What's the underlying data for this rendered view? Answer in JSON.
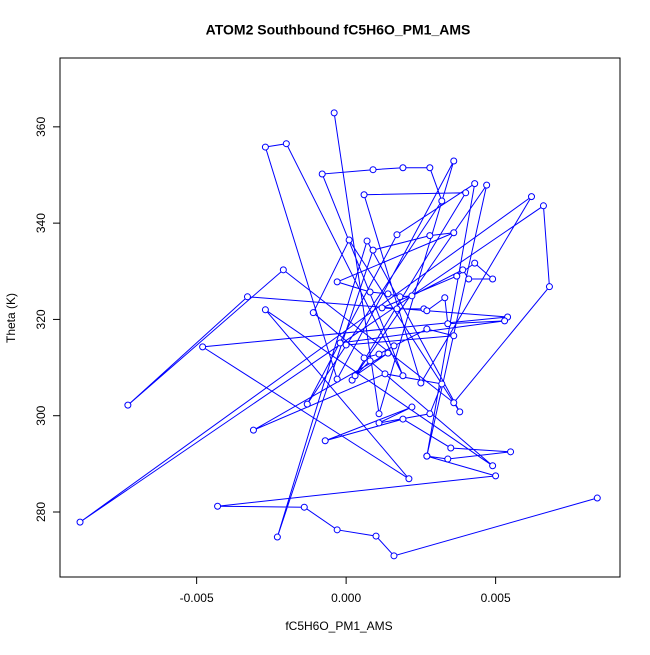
{
  "chart_data": {
    "type": "line",
    "markers": true,
    "title": "ATOM2 Southbound fC5H6O_PM1_AMS",
    "x_label": "fC5H6O_PM1_AMS",
    "y_label": "Theta (K)",
    "color": "#0000ff",
    "x": [
      -0.0004,
      0.0011,
      0.0036,
      -0.0003,
      -0.0027,
      -0.002,
      0.0019,
      -0.0008,
      0.0009,
      0.0019,
      0.0028,
      0.0032,
      -0.0013,
      0.0017,
      0.0043,
      0.0027,
      0.0047,
      0.0002,
      0.004,
      0.0006,
      0.0025,
      0.0062,
      -0.0089,
      0.0066,
      0.0068,
      0.0036,
      -0.0021,
      -0.0073,
      -0.0033,
      0.0054,
      -0.0048,
      0.0021,
      -0.0027,
      0.0049,
      -0.0011,
      0.0001,
      0.0038,
      0.0007,
      -0.0023,
      0.0009,
      0.0028,
      0.0036,
      -0.0003,
      0.0008,
      0.0014,
      0.0018,
      0.0022,
      0.0039,
      0.0041,
      0.0049,
      0.0043,
      0.0037,
      0.0012,
      0.0017,
      0.0026,
      0.0027,
      0.0033,
      0.0034,
      0.0053,
      -0.0002,
      0.0,
      0.0036,
      0.0027,
      0.0016,
      0.0011,
      0.0006,
      0.0008,
      0.0003,
      0.0014,
      -0.0031,
      0.0013,
      0.0032,
      0.0028,
      0.0011,
      0.0022,
      -0.0007,
      0.0019,
      0.0035,
      0.0055,
      0.0034,
      0.0027,
      0.005,
      -0.0043,
      -0.0014,
      -0.0003,
      0.001,
      0.0016,
      0.0084
    ],
    "values": [
      362.9,
      300.4,
      352.9,
      307.6,
      355.8,
      356.5,
      308.3,
      350.2,
      351.1,
      351.5,
      351.5,
      344.6,
      302.4,
      337.6,
      348.2,
      291.6,
      347.9,
      307.4,
      346.3,
      345.9,
      306.8,
      345.5,
      277.9,
      343.6,
      326.8,
      302.7,
      330.3,
      302.2,
      324.7,
      320.5,
      314.3,
      286.9,
      322.0,
      289.6,
      321.4,
      336.5,
      300.8,
      336.3,
      274.8,
      334.4,
      337.4,
      338.0,
      327.8,
      325.7,
      325.3,
      324.7,
      324.9,
      330.3,
      328.4,
      328.4,
      331.7,
      329.0,
      322.4,
      322.2,
      322.2,
      321.8,
      324.5,
      319.1,
      319.7,
      315.1,
      314.7,
      316.6,
      318.0,
      314.5,
      312.8,
      312.0,
      311.4,
      308.3,
      313.0,
      297.0,
      308.7,
      306.6,
      300.4,
      298.5,
      301.8,
      294.8,
      299.3,
      293.3,
      292.5,
      291.0,
      291.6,
      287.5,
      281.2,
      281.0,
      276.3,
      275.0,
      270.9,
      282.9
    ],
    "xlim": [
      -0.00957,
      0.00916
    ],
    "ylim": [
      266.5,
      374.3
    ],
    "xticks": [
      -0.005,
      {
        "value": 0,
        "label": "0.000"
      },
      0.005
    ],
    "yticks": [
      280,
      300,
      320,
      340,
      360
    ]
  }
}
